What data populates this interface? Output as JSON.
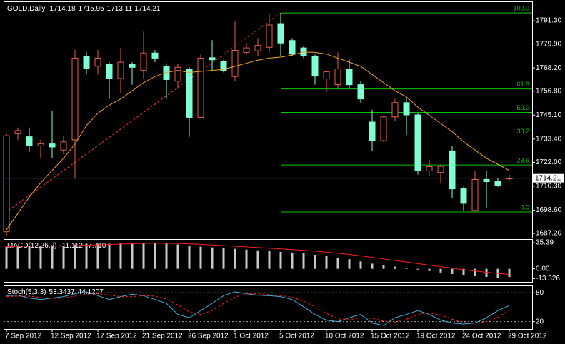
{
  "chart_data": [
    {
      "type": "candlestick",
      "title": "GOLD,Daily",
      "categories": [
        "7 Sep 2012",
        null,
        null,
        null,
        "12 Sep 2012",
        null,
        null,
        null,
        "17 Sep 2012",
        null,
        null,
        null,
        "21 Sep 2012",
        null,
        null,
        null,
        "26 Sep 2012",
        null,
        null,
        null,
        "1 Oct 2012",
        null,
        null,
        null,
        "5 Oct 2012",
        null,
        null,
        null,
        "10 Oct 2012",
        null,
        null,
        null,
        "15 Oct 2012",
        null,
        null,
        null,
        "19 Oct 2012",
        null,
        null,
        null,
        "24 Oct 2012",
        null,
        null,
        null,
        "29 Oct 2012"
      ],
      "open": [
        1688,
        1736,
        1734.5,
        1730,
        1731,
        1728,
        1733,
        1774,
        1769,
        1770,
        1763,
        1770,
        1767,
        1775.5,
        1769,
        1761.7,
        1767.7,
        1744,
        1773.2,
        1771.5,
        1764,
        1775.8,
        1776.6,
        1778.3,
        1789.9,
        1781.6,
        1778,
        1774,
        1762.8,
        1760,
        1767.7,
        1760,
        1741.7,
        1732.6,
        1744.2,
        1751.2,
        1745.2,
        1717.8,
        1717,
        1727.6,
        1709,
        1698.4,
        1713.6,
        1712.5,
        1714.18
      ],
      "high": [
        1736,
        1739,
        1739,
        1733,
        1747,
        1735,
        1777,
        1776,
        1777,
        1771,
        1778,
        1771,
        1786,
        1777,
        1770.5,
        1770,
        1768.5,
        1774.7,
        1781.8,
        1772.2,
        1790.9,
        1780.4,
        1782.8,
        1794.4,
        1795.1,
        1782.8,
        1779,
        1774.7,
        1767,
        1775.8,
        1772.3,
        1761.7,
        1747.7,
        1744.9,
        1753,
        1753.6,
        1745.9,
        1723.4,
        1721,
        1730,
        1710,
        1717.8,
        1717.8,
        1714.2,
        1715.95
      ],
      "low": [
        1686,
        1733,
        1727,
        1724,
        1724,
        1726,
        1714,
        1765,
        1765,
        1753,
        1756,
        1760,
        1763,
        1771,
        1753,
        1758,
        1734.5,
        1743.5,
        1767,
        1766,
        1761.7,
        1774.7,
        1774,
        1775.8,
        1774,
        1774,
        1773,
        1760,
        1756.4,
        1758,
        1758,
        1751.2,
        1727.6,
        1731.9,
        1742.4,
        1735.4,
        1716,
        1715.3,
        1712,
        1704.4,
        1698.4,
        1697.7,
        1699.5,
        1710,
        1713.11
      ],
      "close": [
        1735,
        1737.5,
        1730,
        1731,
        1729.5,
        1732,
        1773,
        1768,
        1773,
        1763,
        1771,
        1768.5,
        1775.5,
        1773,
        1762.5,
        1768.5,
        1744,
        1773,
        1772.2,
        1767,
        1776.8,
        1778,
        1779.2,
        1789.2,
        1780.4,
        1775,
        1774,
        1764.2,
        1766.3,
        1767.7,
        1760,
        1753,
        1732.6,
        1744.2,
        1751.2,
        1745.2,
        1717.8,
        1719.9,
        1720,
        1709,
        1701.9,
        1713.6,
        1712.5,
        1710.8,
        1714.21
      ],
      "bull_color": "#e8604c",
      "bear_color": "#7fffd4",
      "ma_values": [
        1689,
        1697,
        1705,
        1712,
        1718,
        1724,
        1731,
        1740,
        1746,
        1750,
        1753,
        1757,
        1761,
        1764,
        1766,
        1767,
        1766,
        1766.5,
        1767,
        1767.5,
        1769,
        1770.5,
        1772,
        1773,
        1773.5,
        1774.5,
        1776,
        1775.8,
        1775,
        1773,
        1771,
        1769,
        1765,
        1761,
        1757,
        1754,
        1749,
        1745,
        1741,
        1737,
        1732,
        1728,
        1724,
        1721,
        1718
      ],
      "ma_color": "#f0a030",
      "fib": {
        "color": "#00c800",
        "trend_color": "#ff3030",
        "levels": [
          {
            "label": "100.0",
            "price": 1795.1
          },
          {
            "label": "61.8",
            "price": 1757.9
          },
          {
            "label": "50.0",
            "price": 1746.4
          },
          {
            "label": "38.2",
            "price": 1734.9
          },
          {
            "label": "23.6",
            "price": 1720.7
          },
          {
            "label": "0.0",
            "price": 1697.7
          }
        ]
      },
      "ylim": [
        1685.1,
        1800.4
      ],
      "yticks": [
        {
          "value": 1791.3,
          "label": "1791.30"
        },
        {
          "value": 1779.9,
          "label": "1779.90"
        },
        {
          "value": 1768.2,
          "label": "1768.20"
        },
        {
          "value": 1756.8,
          "label": "1756.80"
        },
        {
          "value": 1745.1,
          "label": "1745.10"
        },
        {
          "value": 1733.4,
          "label": "1733.40"
        },
        {
          "value": 1722,
          "label": "1722.00"
        },
        {
          "value": 1710.3,
          "label": "1710.30"
        },
        {
          "value": 1698.6,
          "label": "1698.60"
        },
        {
          "value": 1687.2,
          "label": "1687.20"
        }
      ]
    },
    {
      "type": "macd",
      "title": "MACD(12,26,9)",
      "series": [
        {
          "color": "#c8c8c8",
          "values": [
            30,
            31,
            31,
            31,
            31,
            31,
            33,
            34,
            34,
            34,
            35,
            35,
            35.4,
            35,
            34,
            33,
            31,
            30,
            29,
            28,
            27,
            26,
            25,
            24,
            23,
            22,
            21,
            19,
            17,
            15,
            13,
            10,
            7,
            5,
            3,
            1,
            -1,
            -3,
            -5,
            -7,
            -9,
            -10,
            -11,
            -12,
            -11.112
          ]
        },
        {
          "color": "#ff2020",
          "last_label": "-7.710",
          "values": [
            30,
            30.5,
            31,
            31,
            31,
            31,
            31.5,
            32,
            32.5,
            33,
            33.5,
            34,
            34.5,
            34.7,
            34.6,
            34.3,
            33.8,
            33.1,
            32.3,
            31.5,
            30.6,
            29.7,
            28.8,
            27.9,
            27,
            26,
            25,
            24,
            22.6,
            21.1,
            19.5,
            17.6,
            15.5,
            13.4,
            11.3,
            9.2,
            7.1,
            5,
            2.9,
            0.9,
            -1.1,
            -3,
            -4.6,
            -6.2,
            -7.71
          ]
        }
      ],
      "ylim": [
        -17.7,
        39.3
      ],
      "yticks": [
        35.39,
        {
          "value": 0,
          "label": "0.00"
        },
        -13.326
      ]
    },
    {
      "type": "stochastic",
      "title": "Stoch(5,3,3)",
      "series": [
        {
          "color": "#40b0d8",
          "values": [
            74,
            75,
            69,
            66,
            69,
            72,
            78,
            82,
            74,
            66,
            72,
            77,
            74,
            66,
            58,
            35,
            28,
            43,
            58,
            74,
            82,
            78,
            75,
            74,
            72,
            66,
            51,
            35,
            23,
            20,
            28,
            35,
            17,
            12,
            28,
            35,
            43,
            35,
            23,
            17,
            15,
            17,
            28,
            43,
            53.3437
          ]
        },
        {
          "color": "#ff2020",
          "values": [
            72,
            73,
            73,
            70,
            68,
            69,
            73,
            77,
            78,
            75,
            72,
            72,
            74,
            73,
            67,
            55,
            40,
            35,
            43,
            58,
            71,
            78,
            78,
            76,
            74,
            71,
            63,
            51,
            37,
            26,
            24,
            28,
            27,
            21,
            19,
            25,
            35,
            38,
            34,
            25,
            18,
            16,
            20,
            29,
            44.1207
          ]
        }
      ],
      "ylim": [
        4.6,
        93.8
      ],
      "yticks": [
        80,
        20
      ]
    }
  ]
}
